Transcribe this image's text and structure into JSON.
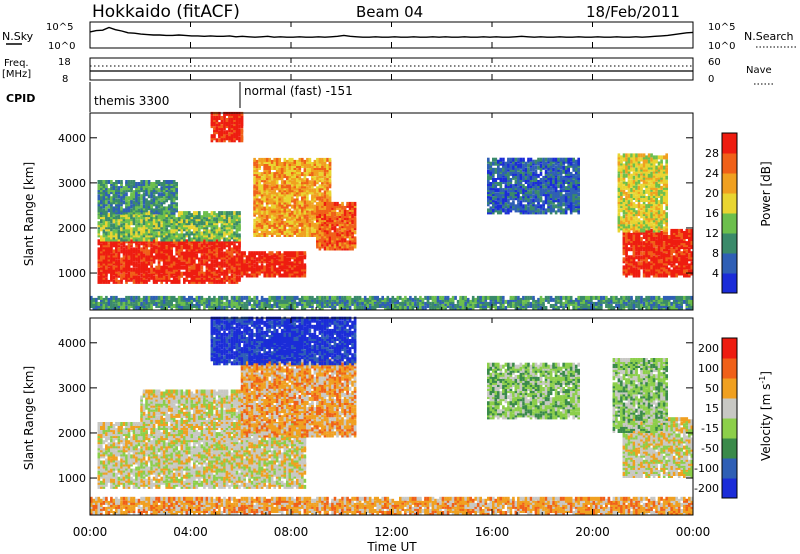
{
  "header": {
    "station": "Hokkaido (fitACF)",
    "beam": "Beam 04",
    "date": "18/Feb/2011"
  },
  "noise_panel": {
    "left_label": "N.Sky",
    "right_label": "N.Search",
    "y_ticks": [
      "10^5",
      "10^0"
    ],
    "values": [
      3.2,
      3.5,
      3.6,
      4.2,
      3.7,
      3.4,
      3.0,
      2.9,
      2.7,
      2.6,
      2.5,
      2.5,
      2.4,
      2.4,
      2.5,
      2.4,
      2.3,
      2.3,
      2.2,
      2.3,
      2.2,
      2.2,
      2.3,
      2.1,
      2.2,
      2.1,
      2.0,
      2.1,
      2.2,
      2.0,
      2.1,
      2.0,
      2.0,
      2.1,
      2.0,
      2.0,
      2.1,
      2.0,
      2.1,
      2.2,
      2.4,
      2.2,
      2.1,
      2.0,
      2.0,
      2.1,
      2.0,
      2.0,
      2.1,
      2.0,
      2.0,
      2.1,
      2.0,
      2.0,
      2.1,
      2.0,
      2.1,
      2.0,
      2.0,
      2.1,
      2.0,
      2.0,
      2.1,
      2.0,
      2.1,
      2.0,
      2.0,
      2.1,
      2.2,
      2.1,
      2.0,
      2.1,
      2.0,
      2.0,
      2.1,
      2.0,
      2.0,
      2.1,
      2.0,
      2.0,
      2.1,
      2.0,
      2.0,
      2.1,
      2.0,
      2.0,
      2.1,
      2.0,
      2.1,
      2.2,
      2.3,
      2.4,
      2.6,
      2.8,
      3.0,
      3.1
    ]
  },
  "freq_panel": {
    "left_label": "Freq.",
    "left_unit": "[MHz]",
    "right_label": "Nave",
    "y_ticks_left": [
      "18",
      "8"
    ],
    "y_ticks_right": [
      "60",
      "0"
    ]
  },
  "cpid_panel": {
    "label": "CPID",
    "segments": [
      {
        "name": "themis 3300",
        "start_hour": 0,
        "end_hour": 6
      },
      {
        "name": "normal (fast) -151",
        "start_hour": 6,
        "end_hour": 24
      }
    ]
  },
  "x_axis": {
    "label": "Time UT",
    "ticks": [
      "00:00",
      "04:00",
      "08:00",
      "12:00",
      "16:00",
      "20:00",
      "00:00"
    ]
  },
  "chart_data": [
    {
      "type": "heatmap",
      "quantity": "power",
      "ylabel": "Slant Range [km]",
      "xlim_hours": [
        0,
        24
      ],
      "ylim_km": [
        180,
        4550
      ],
      "y_ticks": [
        "1000",
        "2000",
        "3000",
        "4000"
      ],
      "colorbar": {
        "label": "Power [dB]",
        "ticks": [
          "4",
          "8",
          "12",
          "16",
          "20",
          "24",
          "28"
        ],
        "colors": [
          "#1b2cd8",
          "#2f5fb5",
          "#3a8a6a",
          "#6cbf4c",
          "#e9d531",
          "#f0a020",
          "#f06018",
          "#ee1c10"
        ]
      },
      "regions": [
        {
          "t0": 0.3,
          "t1": 5.9,
          "r0": 760,
          "r1": 1700,
          "level": 7
        },
        {
          "t0": 0.3,
          "t1": 5.9,
          "r0": 1700,
          "r1": 2300,
          "level": 3
        },
        {
          "t0": 0.3,
          "t1": 3.5,
          "r0": 2300,
          "r1": 3000,
          "level": 2
        },
        {
          "t0": 6.0,
          "t1": 8.5,
          "r0": 900,
          "r1": 1400,
          "level": 7
        },
        {
          "t0": 6.5,
          "t1": 9.5,
          "r0": 1800,
          "r1": 3500,
          "level": 5
        },
        {
          "t0": 9.0,
          "t1": 10.5,
          "r0": 1500,
          "r1": 2500,
          "level": 6
        },
        {
          "t0": 4.8,
          "t1": 6.0,
          "r0": 3900,
          "r1": 4500,
          "level": 7
        },
        {
          "t0": 15.8,
          "t1": 19.5,
          "r0": 2300,
          "r1": 3500,
          "level": 1
        },
        {
          "t0": 21.2,
          "t1": 24.0,
          "r0": 900,
          "r1": 1900,
          "level": 7
        },
        {
          "t0": 21.0,
          "t1": 23.0,
          "r0": 1900,
          "r1": 3600,
          "level": 4
        },
        {
          "t0": 0.0,
          "t1": 24.0,
          "r0": 180,
          "r1": 420,
          "level": 2
        }
      ]
    },
    {
      "type": "heatmap",
      "quantity": "velocity",
      "ylabel": "Slant Range [km]",
      "xlim_hours": [
        0,
        24
      ],
      "ylim_km": [
        180,
        4550
      ],
      "y_ticks": [
        "1000",
        "2000",
        "3000",
        "4000"
      ],
      "colorbar": {
        "label": "Velocity [m s",
        "label_sup": "-1",
        "label_end": "]",
        "ticks": [
          "200",
          "100",
          "50",
          "15",
          "-15",
          "-50",
          "-100",
          "-200"
        ],
        "colors": [
          "#1b2cd8",
          "#2f5fb5",
          "#3a8a4a",
          "#8ccf4a",
          "#c8c8c4",
          "#f0a020",
          "#f06018",
          "#ee1c10"
        ]
      },
      "regions": [
        {
          "t0": 0.3,
          "t1": 8.5,
          "r0": 760,
          "r1": 2200,
          "level": 4
        },
        {
          "t0": 2.0,
          "t1": 6.0,
          "r0": 2200,
          "r1": 2900,
          "level": 4
        },
        {
          "t0": 6.0,
          "t1": 10.5,
          "r0": 1900,
          "r1": 3600,
          "level": 5
        },
        {
          "t0": 4.8,
          "t1": 10.5,
          "r0": 3500,
          "r1": 4500,
          "level": 0
        },
        {
          "t0": 15.8,
          "t1": 19.5,
          "r0": 2300,
          "r1": 3500,
          "level": 3
        },
        {
          "t0": 21.2,
          "t1": 24.0,
          "r0": 1000,
          "r1": 2300,
          "level": 4
        },
        {
          "t0": 20.8,
          "t1": 23.0,
          "r0": 2000,
          "r1": 3600,
          "level": 3
        },
        {
          "t0": 0.0,
          "t1": 24.0,
          "r0": 180,
          "r1": 500,
          "level": 5
        }
      ]
    }
  ]
}
